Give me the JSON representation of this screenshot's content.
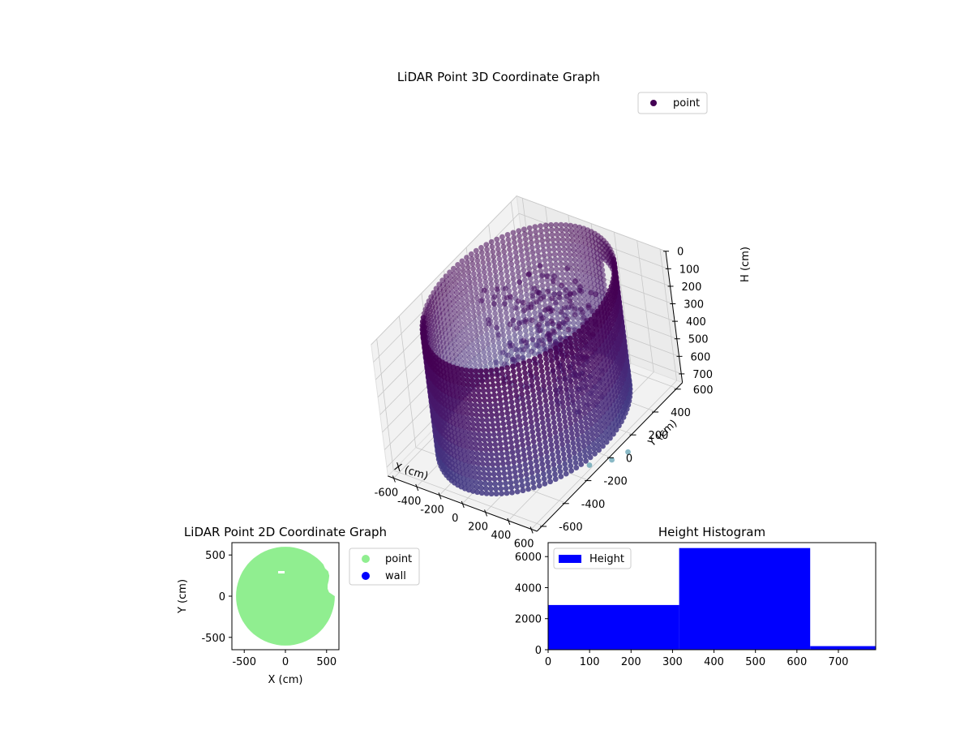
{
  "chart_data": [
    {
      "type": "scatter",
      "title": "LiDAR Point 3D Coordinate Graph",
      "xlabel": "X (cm)",
      "ylabel": "Y (cm)",
      "zlabel": "H (cm)",
      "xlim": [
        -650,
        650
      ],
      "ylim": [
        -650,
        650
      ],
      "zlim": [
        750,
        0
      ],
      "xticks": [
        -600,
        -400,
        -200,
        0,
        200,
        400,
        600
      ],
      "yticks": [
        -600,
        -400,
        -200,
        0,
        200,
        400,
        600
      ],
      "zticks": [
        0,
        100,
        200,
        300,
        400,
        500,
        600,
        700
      ],
      "legend": [
        "point"
      ],
      "legend_position": "top-right",
      "grid": true,
      "colormap": "viridis",
      "description_cylinder": {
        "radius": 600,
        "center": [
          0,
          0
        ],
        "h_top": 0,
        "h_bottom": 700
      },
      "outlier_points": [
        {
          "x": 560,
          "y": -90,
          "h": 760
        },
        {
          "x": 620,
          "y": 40,
          "h": 800
        },
        {
          "x": 650,
          "y": 150,
          "h": 820
        }
      ]
    },
    {
      "type": "scatter",
      "title": "LiDAR Point 2D Coordinate Graph",
      "xlabel": "X (cm)",
      "ylabel": "Y (cm)",
      "xlim": [
        -650,
        650
      ],
      "ylim": [
        -650,
        650
      ],
      "xticks": [
        -500,
        0,
        500
      ],
      "yticks": [
        -500,
        0,
        500
      ],
      "series": [
        {
          "name": "point",
          "color": "#90ee90"
        },
        {
          "name": "wall",
          "color": "#0000ff"
        }
      ],
      "legend_position": "outside-right"
    },
    {
      "type": "bar",
      "title": "Height Histogram",
      "xlabel": "",
      "ylabel": "",
      "xlim": [
        0,
        790
      ],
      "ylim": [
        0,
        6900
      ],
      "xticks": [
        0,
        100,
        200,
        300,
        400,
        500,
        600,
        700
      ],
      "yticks": [
        0,
        2000,
        4000,
        6000
      ],
      "bins": [
        {
          "from": 0,
          "to": 316,
          "count": 2880
        },
        {
          "from": 316,
          "to": 632,
          "count": 6550
        },
        {
          "from": 632,
          "to": 790,
          "count": 230
        }
      ],
      "series": [
        {
          "name": "Height",
          "color": "#0000ff"
        }
      ],
      "legend_position": "top-left"
    }
  ]
}
